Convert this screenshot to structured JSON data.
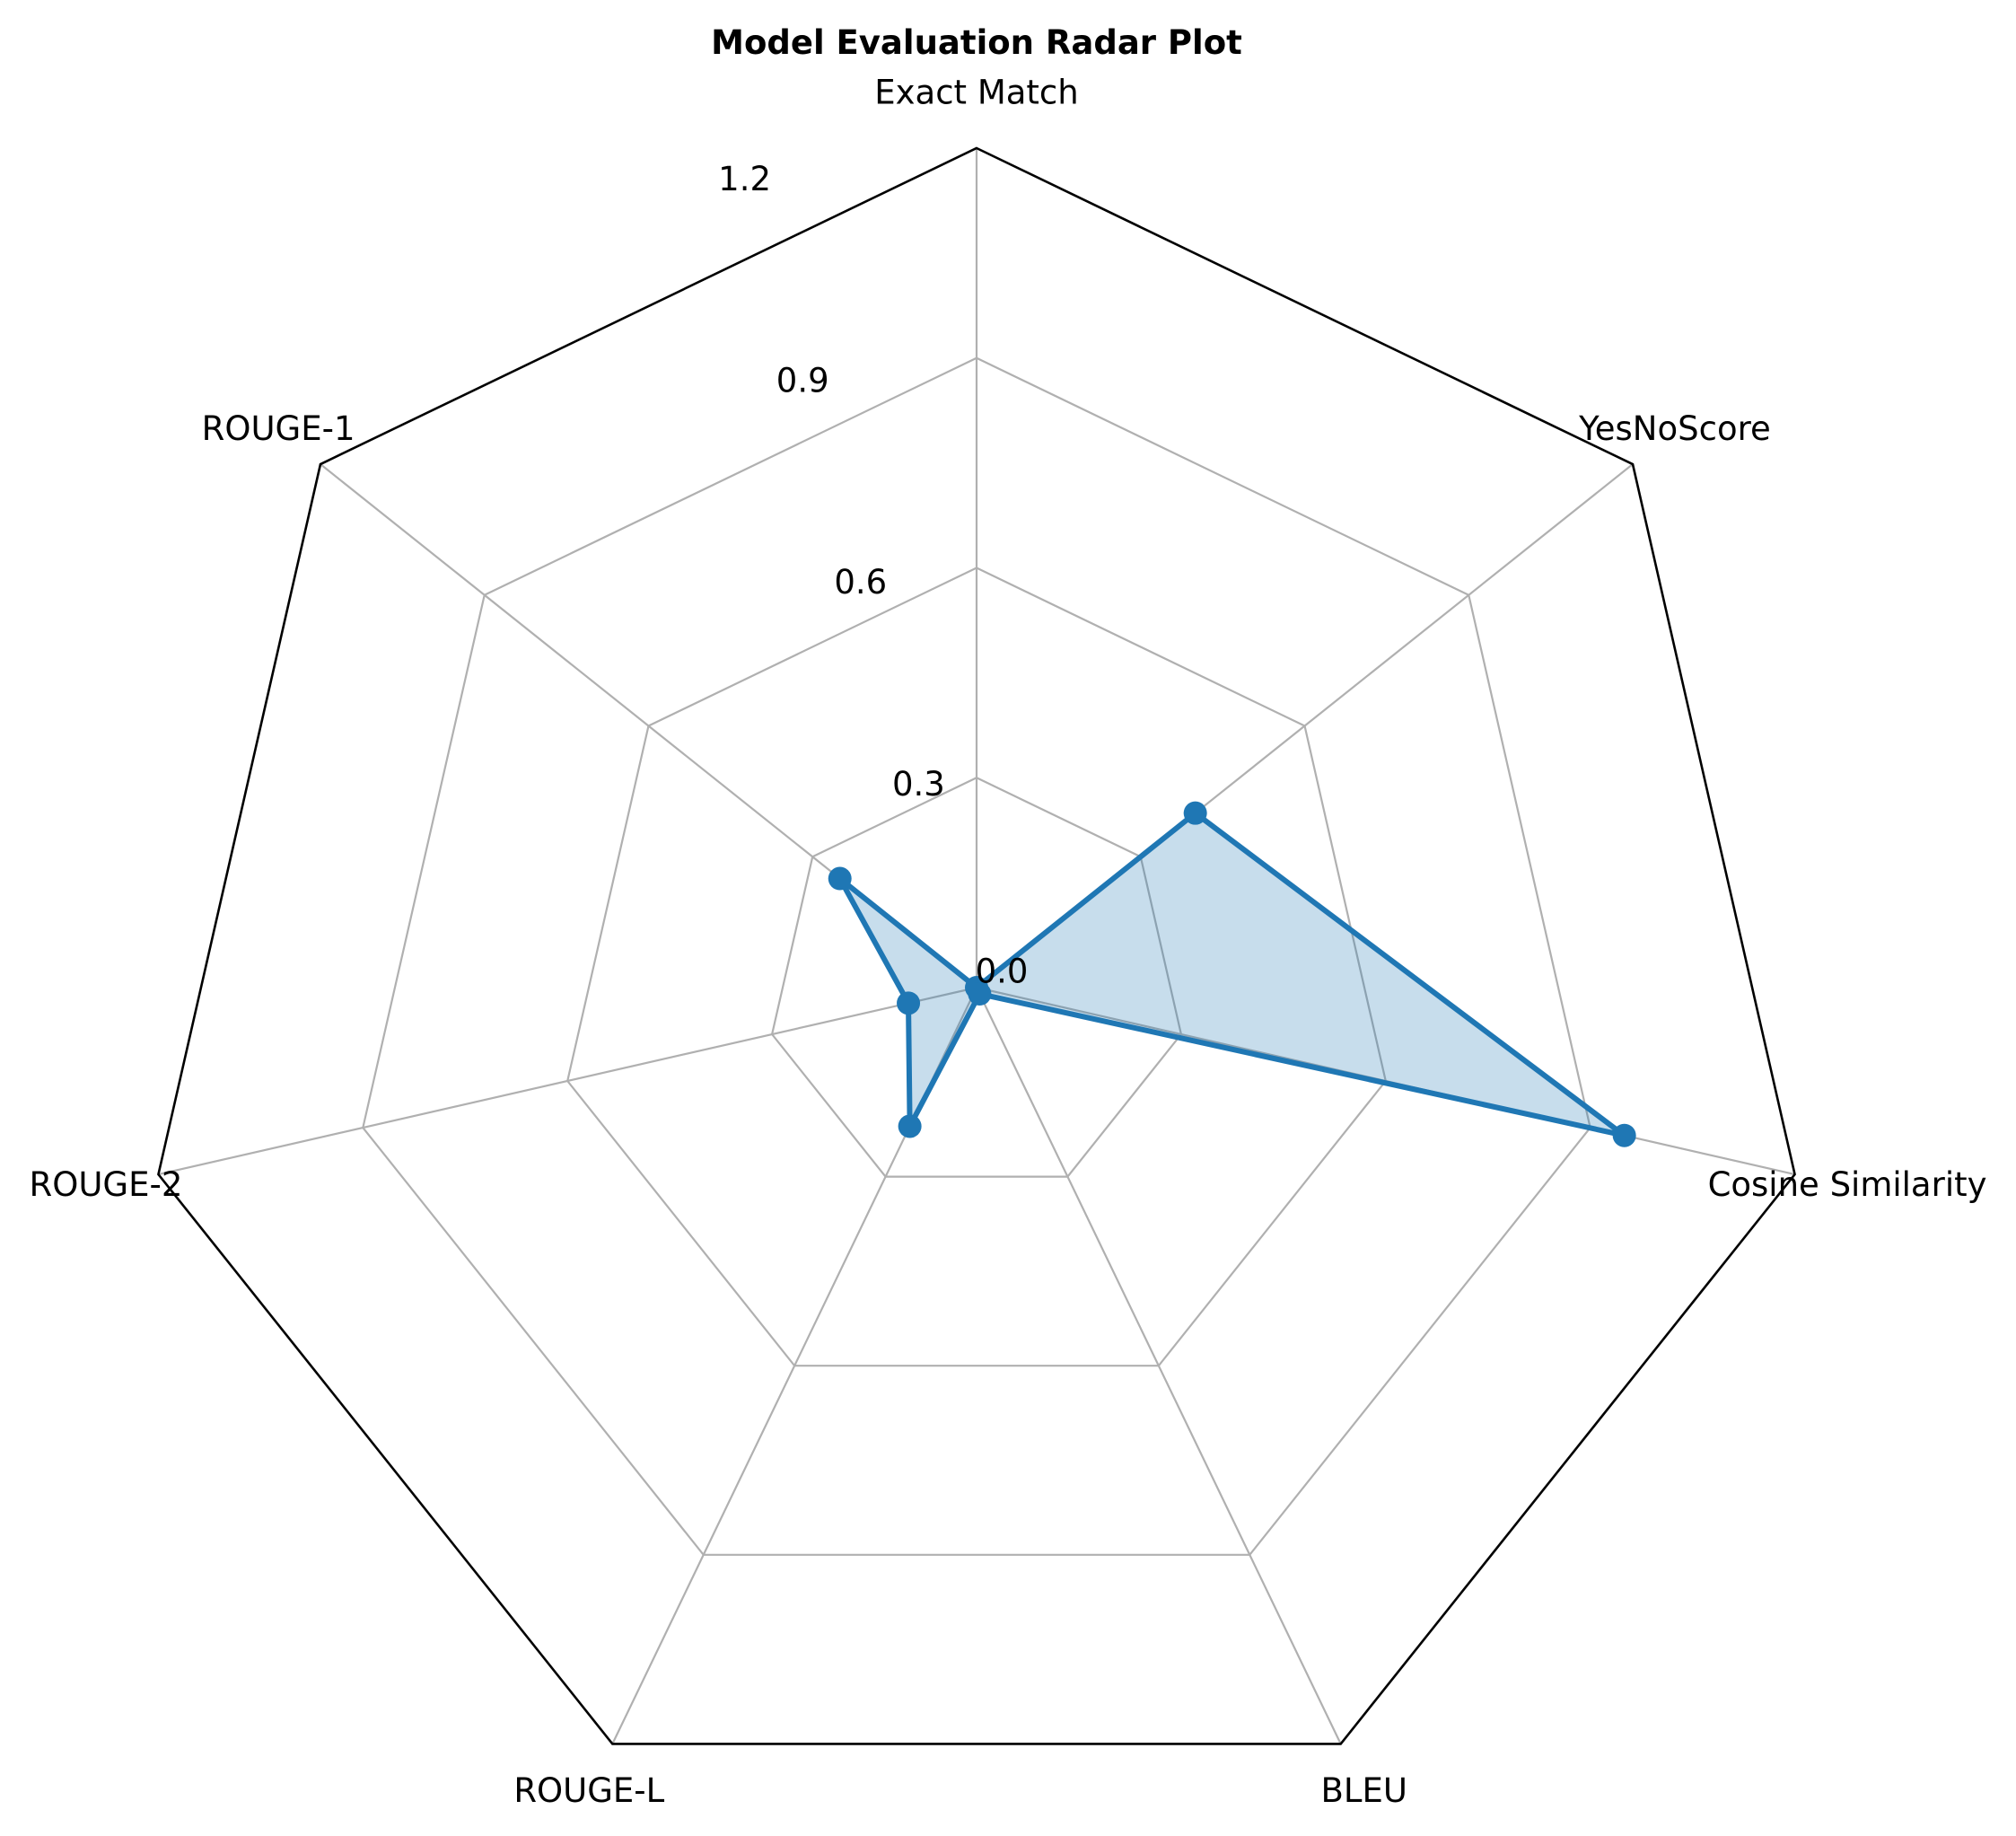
{
  "chart_data": {
    "type": "radar",
    "title": "Model Evaluation Radar Plot",
    "categories": [
      "Exact Match",
      "YesNoScore",
      "Cosine Similarity",
      "BLEU",
      "ROUGE-L",
      "ROUGE-2",
      "ROUGE-1"
    ],
    "series": [
      {
        "values": [
          0.0,
          0.4,
          0.95,
          0.01,
          0.22,
          0.1,
          0.25
        ],
        "color": "#1f77b4"
      }
    ],
    "rlim": [
      0,
      1.2
    ],
    "rticks": [
      0.0,
      0.3,
      0.6,
      0.9,
      1.2
    ],
    "rtick_labels": [
      "0.0",
      "0.3",
      "0.6",
      "0.9",
      "1.2"
    ],
    "grid": true,
    "grid_color": "#b0b0b0",
    "frame_color": "#000000",
    "fill_color": "#1f77b4"
  }
}
